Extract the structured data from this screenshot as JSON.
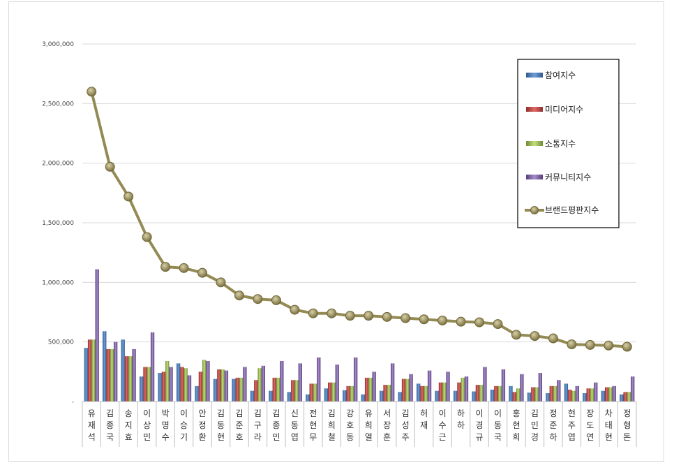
{
  "chart_data": {
    "type": "bar",
    "title": "",
    "xlabel": "",
    "ylabel": "",
    "ylim": [
      0,
      3000000
    ],
    "yticks": [
      0,
      500000,
      1000000,
      1500000,
      2000000,
      2500000,
      3000000
    ],
    "ytick_labels": [
      "-",
      "500,000",
      "1,000,000",
      "1,500,000",
      "2,000,000",
      "2,500,000",
      "3,000,000"
    ],
    "grid": true,
    "legend_position": "top-right",
    "categories": [
      "유재석",
      "김종국",
      "송지효",
      "이상민",
      "박명수",
      "이승기",
      "안정환",
      "김동현",
      "김준호",
      "김구라",
      "김종민",
      "신동엽",
      "전현무",
      "김희철",
      "강호동",
      "유희열",
      "서장훈",
      "김성주",
      "허재",
      "이수근",
      "하하",
      "이경규",
      "이동국",
      "홍현희",
      "김민경",
      "정준하",
      "현주엽",
      "장도연",
      "차태현",
      "정형돈"
    ],
    "series": [
      {
        "name": "참여지수",
        "kind": "bar",
        "color": "#4f81bd",
        "values": [
          450000,
          590000,
          520000,
          210000,
          240000,
          320000,
          130000,
          190000,
          190000,
          90000,
          90000,
          80000,
          60000,
          110000,
          95000,
          60000,
          90000,
          80000,
          150000,
          90000,
          90000,
          85000,
          100000,
          130000,
          75000,
          70000,
          150000,
          70000,
          90000,
          60000
        ]
      },
      {
        "name": "미디어지수",
        "kind": "bar",
        "color": "#c0504d",
        "values": [
          520000,
          440000,
          380000,
          290000,
          250000,
          290000,
          250000,
          270000,
          200000,
          180000,
          200000,
          180000,
          150000,
          160000,
          130000,
          200000,
          140000,
          190000,
          130000,
          160000,
          160000,
          140000,
          130000,
          80000,
          120000,
          130000,
          100000,
          110000,
          120000,
          80000
        ]
      },
      {
        "name": "소통지수",
        "kind": "bar",
        "color": "#9bbb59",
        "values": [
          520000,
          440000,
          380000,
          290000,
          340000,
          280000,
          350000,
          270000,
          200000,
          280000,
          200000,
          180000,
          150000,
          160000,
          130000,
          200000,
          140000,
          190000,
          130000,
          160000,
          200000,
          140000,
          130000,
          110000,
          120000,
          130000,
          90000,
          110000,
          120000,
          80000
        ]
      },
      {
        "name": "커뮤니티지수",
        "kind": "bar",
        "color": "#8064a2",
        "values": [
          1110000,
          500000,
          440000,
          580000,
          290000,
          220000,
          340000,
          260000,
          290000,
          300000,
          340000,
          320000,
          370000,
          310000,
          370000,
          250000,
          320000,
          230000,
          260000,
          250000,
          210000,
          290000,
          270000,
          230000,
          240000,
          180000,
          130000,
          160000,
          130000,
          210000
        ]
      },
      {
        "name": "브랜드평판지수",
        "kind": "line",
        "color": "#948a54",
        "values": [
          2600000,
          1970000,
          1720000,
          1380000,
          1130000,
          1120000,
          1080000,
          1000000,
          890000,
          860000,
          850000,
          770000,
          740000,
          740000,
          720000,
          720000,
          710000,
          700000,
          690000,
          680000,
          670000,
          665000,
          650000,
          560000,
          550000,
          530000,
          480000,
          475000,
          470000,
          460000
        ]
      }
    ]
  }
}
